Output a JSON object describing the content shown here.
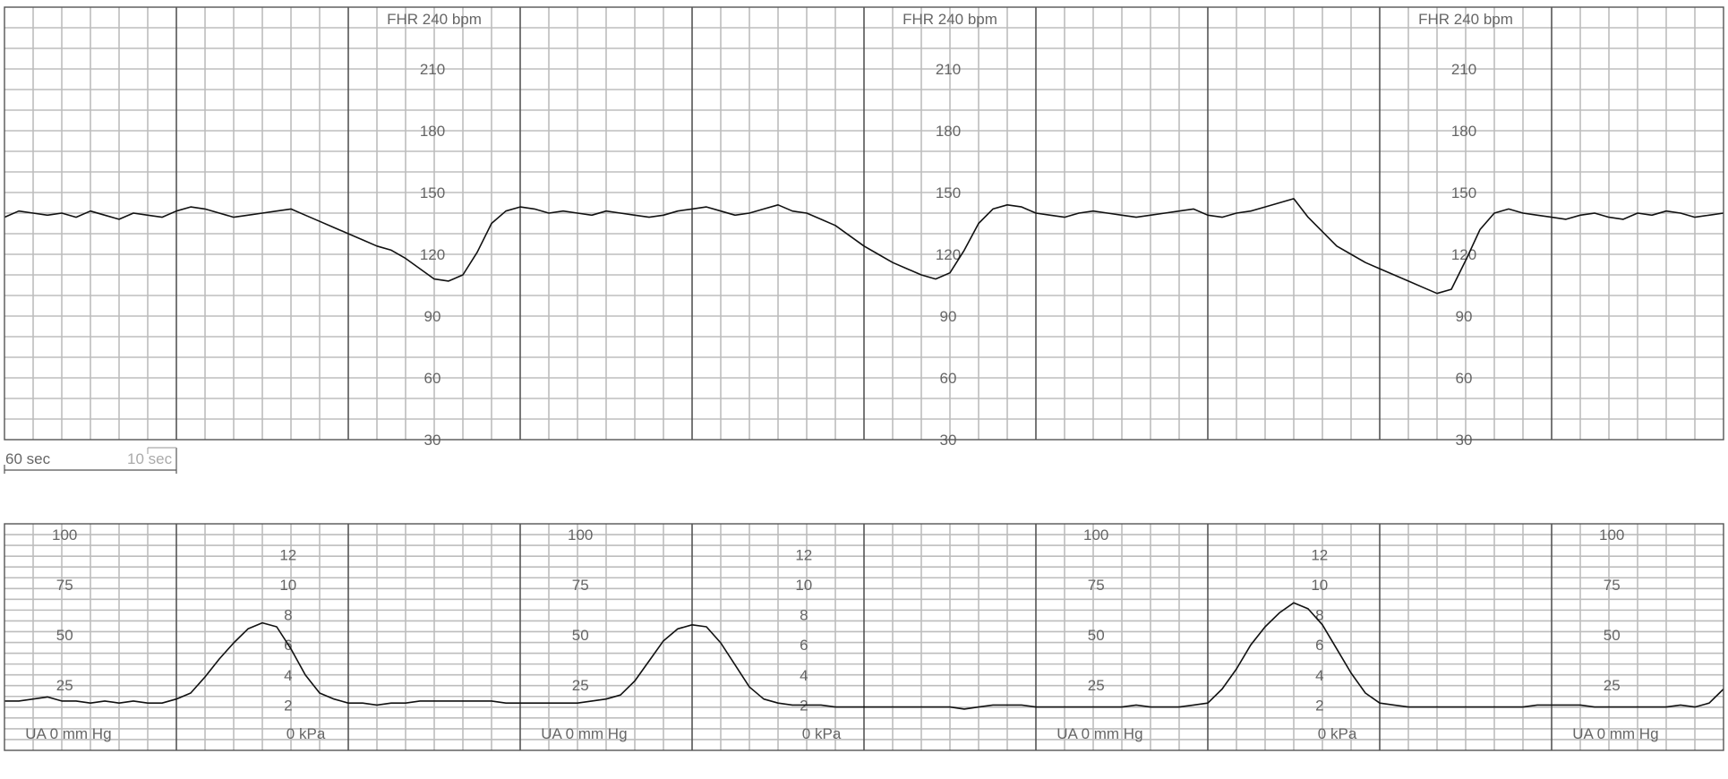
{
  "fhr_panel": {
    "header_label": "FHR 240 bpm",
    "tick_labels": [
      "210",
      "180",
      "150",
      "120",
      "90",
      "60",
      "30"
    ],
    "tick_values": [
      210,
      180,
      150,
      120,
      90,
      60,
      30
    ],
    "scale_label_60": "60 sec",
    "scale_label_10": "10 sec"
  },
  "ua_panel": {
    "mmhg_tick_labels": [
      "100",
      "75",
      "50",
      "25"
    ],
    "mmhg_tick_values": [
      100,
      75,
      50,
      25
    ],
    "kpa_tick_labels": [
      "12",
      "10",
      "8",
      "6",
      "4",
      "2"
    ],
    "kpa_tick_values": [
      12,
      10,
      8,
      6,
      4,
      2
    ],
    "mmhg_footer": "UA  0  mm Hg",
    "kpa_footer": "0 kPa"
  },
  "colors": {
    "minor_grid": "#bdbdbd",
    "major_grid": "#555555",
    "trace": "#111111",
    "label": "#666666"
  },
  "chart_data": [
    {
      "type": "line",
      "title": "FHR 240 bpm",
      "ylabel": "bpm",
      "ylim": [
        30,
        240
      ],
      "xlim": [
        0,
        600
      ],
      "x_unit": "sec",
      "grid": true,
      "series": [
        {
          "x": [
            0,
            5,
            10,
            15,
            20,
            25,
            30,
            35,
            40,
            45,
            50,
            55,
            60,
            65,
            70,
            75,
            80,
            85,
            90,
            95,
            100,
            105,
            110,
            115,
            120,
            125,
            130,
            135,
            140,
            145,
            150,
            155,
            160,
            165,
            170,
            175,
            180,
            185,
            190,
            195,
            200,
            205,
            210,
            215,
            220,
            225,
            230,
            235,
            240,
            245,
            250,
            255,
            260,
            265,
            270,
            275,
            280,
            285,
            290,
            295,
            300,
            305,
            310,
            315,
            320,
            325,
            330,
            335,
            340,
            345,
            350,
            355,
            360,
            365,
            370,
            375,
            380,
            385,
            390,
            395,
            400,
            405,
            410,
            415,
            420,
            425,
            430,
            435,
            440,
            445,
            450,
            455,
            460,
            465,
            470,
            475,
            480,
            485,
            490,
            495,
            500,
            505,
            510,
            515,
            520,
            525,
            530,
            535,
            540,
            545,
            550,
            555,
            560,
            565,
            570,
            575,
            580,
            585,
            590,
            595,
            600
          ],
          "values": [
            138,
            141,
            140,
            139,
            140,
            138,
            141,
            139,
            137,
            140,
            139,
            138,
            141,
            143,
            142,
            140,
            138,
            139,
            140,
            141,
            142,
            139,
            136,
            133,
            130,
            127,
            124,
            122,
            118,
            113,
            108,
            107,
            110,
            121,
            135,
            141,
            143,
            142,
            140,
            141,
            140,
            139,
            141,
            140,
            139,
            138,
            139,
            141,
            142,
            143,
            141,
            139,
            140,
            142,
            144,
            141,
            140,
            137,
            134,
            129,
            124,
            120,
            116,
            113,
            110,
            108,
            111,
            122,
            135,
            142,
            144,
            143,
            140,
            139,
            138,
            140,
            141,
            140,
            139,
            138,
            139,
            140,
            141,
            142,
            139,
            138,
            140,
            141,
            143,
            145,
            147,
            138,
            131,
            124,
            120,
            116,
            113,
            110,
            107,
            104,
            101,
            103,
            117,
            132,
            140,
            142,
            140,
            139,
            138,
            137,
            139,
            140,
            138,
            137,
            140,
            139,
            141,
            140,
            138,
            139,
            140
          ]
        }
      ]
    },
    {
      "type": "line",
      "title": "UA",
      "ylabel": "mm Hg",
      "ylim": [
        0,
        100
      ],
      "xlim": [
        0,
        600
      ],
      "x_unit": "sec",
      "grid": true,
      "series": [
        {
          "x": [
            0,
            5,
            10,
            15,
            20,
            25,
            30,
            35,
            40,
            45,
            50,
            55,
            60,
            65,
            70,
            75,
            80,
            85,
            90,
            95,
            100,
            105,
            110,
            115,
            120,
            125,
            130,
            135,
            140,
            145,
            150,
            155,
            160,
            165,
            170,
            175,
            180,
            185,
            190,
            195,
            200,
            205,
            210,
            215,
            220,
            225,
            230,
            235,
            240,
            245,
            250,
            255,
            260,
            265,
            270,
            275,
            280,
            285,
            290,
            295,
            300,
            305,
            310,
            315,
            320,
            325,
            330,
            335,
            340,
            345,
            350,
            355,
            360,
            365,
            370,
            375,
            380,
            385,
            390,
            395,
            400,
            405,
            410,
            415,
            420,
            425,
            430,
            435,
            440,
            445,
            450,
            455,
            460,
            465,
            470,
            475,
            480,
            485,
            490,
            495,
            500,
            505,
            510,
            515,
            520,
            525,
            530,
            535,
            540,
            545,
            550,
            555,
            560,
            565,
            570,
            575,
            580,
            585,
            590,
            595,
            600
          ],
          "values": [
            17,
            17,
            18,
            19,
            17,
            17,
            16,
            17,
            16,
            17,
            16,
            16,
            18,
            21,
            29,
            38,
            46,
            53,
            56,
            54,
            43,
            30,
            21,
            18,
            16,
            16,
            15,
            16,
            16,
            17,
            17,
            17,
            17,
            17,
            17,
            16,
            16,
            16,
            16,
            16,
            16,
            17,
            18,
            20,
            27,
            37,
            47,
            53,
            55,
            54,
            46,
            35,
            24,
            18,
            16,
            15,
            15,
            15,
            14,
            14,
            14,
            14,
            14,
            14,
            14,
            14,
            14,
            13,
            14,
            15,
            15,
            15,
            14,
            14,
            14,
            14,
            14,
            14,
            14,
            15,
            14,
            14,
            14,
            15,
            16,
            23,
            33,
            45,
            54,
            61,
            66,
            63,
            55,
            43,
            31,
            21,
            16,
            15,
            14,
            14,
            14,
            14,
            14,
            14,
            14,
            14,
            14,
            15,
            15,
            15,
            15,
            14,
            14,
            14,
            14,
            14,
            14,
            15,
            14,
            16,
            23
          ]
        }
      ]
    }
  ]
}
